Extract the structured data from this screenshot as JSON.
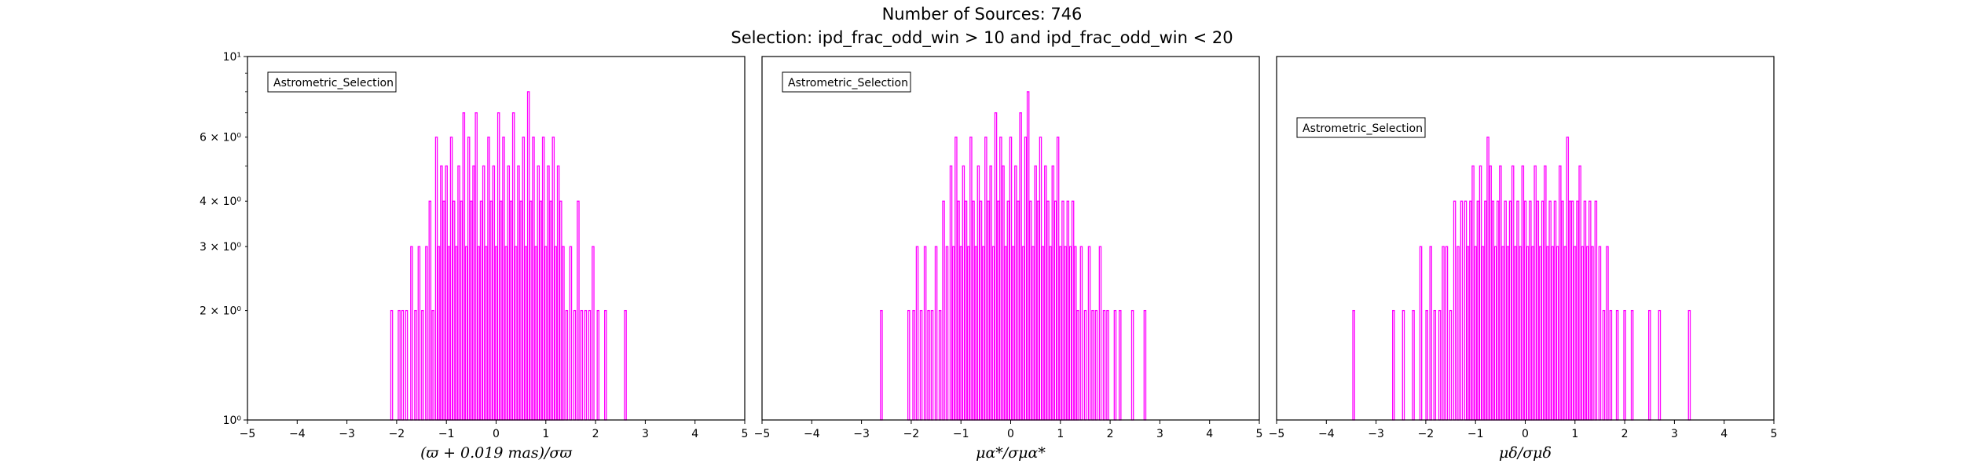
{
  "figure": {
    "title_line1": "Number of Sources: 746",
    "title_line2": "Selection: ipd_frac_odd_win > 10 and ipd_frac_odd_win < 20",
    "bar_color": "#ff00ff"
  },
  "chart_data": [
    {
      "type": "bar",
      "xlabel": "(ϖ + 0.019 mas)/σϖ",
      "xlim": [
        -5,
        5
      ],
      "ylim": [
        1,
        10
      ],
      "yscale": "log",
      "x_ticks": [
        "−5",
        "−4",
        "−3",
        "−2",
        "−1",
        "0",
        "1",
        "2",
        "3",
        "4",
        "5"
      ],
      "y_ticks": [
        "10⁰",
        "2 × 10⁰",
        "3 × 10⁰",
        "4 × 10⁰",
        "6 × 10⁰",
        "10¹"
      ],
      "legend": "Astrometric_Selection",
      "legend_position": "upper left",
      "series": [
        {
          "x": [
            -2.1,
            -1.95,
            -1.88,
            -1.8,
            -1.7,
            -1.62,
            -1.55,
            -1.48,
            -1.4,
            -1.33,
            -1.27,
            -1.2,
            -1.15,
            -1.1,
            -1.05,
            -1.0,
            -0.95,
            -0.9,
            -0.85,
            -0.8,
            -0.75,
            -0.7,
            -0.65,
            -0.6,
            -0.55,
            -0.5,
            -0.45,
            -0.4,
            -0.35,
            -0.3,
            -0.25,
            -0.2,
            -0.15,
            -0.1,
            -0.05,
            0.0,
            0.05,
            0.1,
            0.15,
            0.2,
            0.25,
            0.3,
            0.35,
            0.4,
            0.45,
            0.5,
            0.55,
            0.6,
            0.65,
            0.7,
            0.75,
            0.8,
            0.85,
            0.9,
            0.95,
            1.0,
            1.05,
            1.1,
            1.15,
            1.2,
            1.25,
            1.3,
            1.35,
            1.42,
            1.5,
            1.58,
            1.65,
            1.72,
            1.8,
            1.88,
            1.95,
            2.05,
            2.2,
            2.6
          ],
          "y": [
            2,
            2,
            2,
            2,
            3,
            2,
            3,
            2,
            3,
            4,
            2,
            6,
            3,
            5,
            4,
            5,
            3,
            6,
            4,
            3,
            5,
            4,
            7,
            3,
            6,
            4,
            5,
            7,
            3,
            4,
            5,
            3,
            6,
            4,
            5,
            3,
            7,
            4,
            6,
            3,
            5,
            4,
            7,
            3,
            5,
            4,
            6,
            3,
            8,
            4,
            6,
            3,
            5,
            4,
            6,
            3,
            5,
            4,
            6,
            3,
            5,
            4,
            3,
            2,
            3,
            2,
            4,
            2,
            2,
            2,
            3,
            2,
            2,
            2
          ]
        }
      ]
    },
    {
      "type": "bar",
      "xlabel": "μα*/σμα*",
      "xlim": [
        -5,
        5
      ],
      "ylim": [
        1,
        10
      ],
      "yscale": "log",
      "x_ticks": [
        "−5",
        "−4",
        "−3",
        "−2",
        "−1",
        "0",
        "1",
        "2",
        "3",
        "4",
        "5"
      ],
      "legend": "Astrometric_Selection",
      "legend_position": "upper left",
      "series": [
        {
          "x": [
            -2.6,
            -2.05,
            -1.95,
            -1.88,
            -1.8,
            -1.72,
            -1.65,
            -1.58,
            -1.5,
            -1.42,
            -1.35,
            -1.28,
            -1.2,
            -1.15,
            -1.1,
            -1.05,
            -1.0,
            -0.95,
            -0.9,
            -0.85,
            -0.8,
            -0.75,
            -0.7,
            -0.65,
            -0.6,
            -0.55,
            -0.5,
            -0.45,
            -0.4,
            -0.35,
            -0.3,
            -0.25,
            -0.2,
            -0.15,
            -0.1,
            -0.05,
            0.0,
            0.05,
            0.1,
            0.15,
            0.2,
            0.25,
            0.3,
            0.35,
            0.4,
            0.45,
            0.5,
            0.55,
            0.6,
            0.65,
            0.7,
            0.75,
            0.8,
            0.85,
            0.9,
            0.95,
            1.0,
            1.05,
            1.1,
            1.15,
            1.2,
            1.25,
            1.3,
            1.35,
            1.42,
            1.5,
            1.58,
            1.65,
            1.72,
            1.8,
            1.88,
            1.95,
            2.1,
            2.2,
            2.45,
            2.7
          ],
          "y": [
            2,
            2,
            2,
            3,
            2,
            3,
            2,
            2,
            3,
            2,
            4,
            3,
            5,
            3,
            6,
            4,
            3,
            5,
            4,
            3,
            6,
            4,
            3,
            5,
            4,
            3,
            6,
            4,
            5,
            3,
            7,
            4,
            6,
            5,
            3,
            4,
            6,
            3,
            5,
            4,
            7,
            3,
            6,
            8,
            4,
            3,
            5,
            4,
            6,
            3,
            5,
            4,
            3,
            5,
            4,
            6,
            3,
            4,
            3,
            4,
            3,
            4,
            3,
            2,
            3,
            2,
            3,
            2,
            2,
            3,
            2,
            2,
            2,
            2,
            2,
            2
          ]
        }
      ]
    },
    {
      "type": "bar",
      "xlabel": "μδ/σμδ",
      "xlim": [
        -5,
        5
      ],
      "ylim": [
        1,
        10
      ],
      "yscale": "log",
      "x_ticks": [
        "−5",
        "−4",
        "−3",
        "−2",
        "−1",
        "0",
        "1",
        "2",
        "3",
        "4",
        "5"
      ],
      "legend": "Astrometric_Selection",
      "legend_position": "upper left",
      "series": [
        {
          "x": [
            -3.45,
            -2.65,
            -2.45,
            -2.25,
            -2.1,
            -1.98,
            -1.9,
            -1.82,
            -1.72,
            -1.65,
            -1.58,
            -1.5,
            -1.42,
            -1.35,
            -1.28,
            -1.2,
            -1.15,
            -1.1,
            -1.05,
            -1.0,
            -0.95,
            -0.9,
            -0.85,
            -0.8,
            -0.75,
            -0.7,
            -0.65,
            -0.6,
            -0.55,
            -0.5,
            -0.45,
            -0.4,
            -0.35,
            -0.3,
            -0.25,
            -0.2,
            -0.15,
            -0.1,
            -0.05,
            0.0,
            0.05,
            0.1,
            0.15,
            0.2,
            0.25,
            0.3,
            0.35,
            0.4,
            0.45,
            0.5,
            0.55,
            0.6,
            0.65,
            0.7,
            0.75,
            0.8,
            0.85,
            0.9,
            0.95,
            1.0,
            1.05,
            1.1,
            1.15,
            1.2,
            1.25,
            1.3,
            1.35,
            1.42,
            1.5,
            1.58,
            1.65,
            1.72,
            1.85,
            2.0,
            2.15,
            2.5,
            2.7,
            3.3
          ],
          "y": [
            2,
            2,
            2,
            2,
            3,
            2,
            3,
            2,
            2,
            3,
            3,
            2,
            4,
            3,
            4,
            4,
            3,
            4,
            5,
            3,
            4,
            5,
            3,
            4,
            6,
            5,
            4,
            3,
            4,
            5,
            3,
            4,
            3,
            4,
            5,
            3,
            4,
            3,
            5,
            4,
            3,
            4,
            3,
            5,
            4,
            3,
            4,
            5,
            3,
            4,
            3,
            4,
            3,
            5,
            4,
            3,
            6,
            4,
            4,
            3,
            4,
            5,
            3,
            4,
            3,
            4,
            3,
            4,
            3,
            2,
            3,
            2,
            2,
            2,
            2,
            2,
            2,
            2
          ]
        }
      ]
    }
  ]
}
